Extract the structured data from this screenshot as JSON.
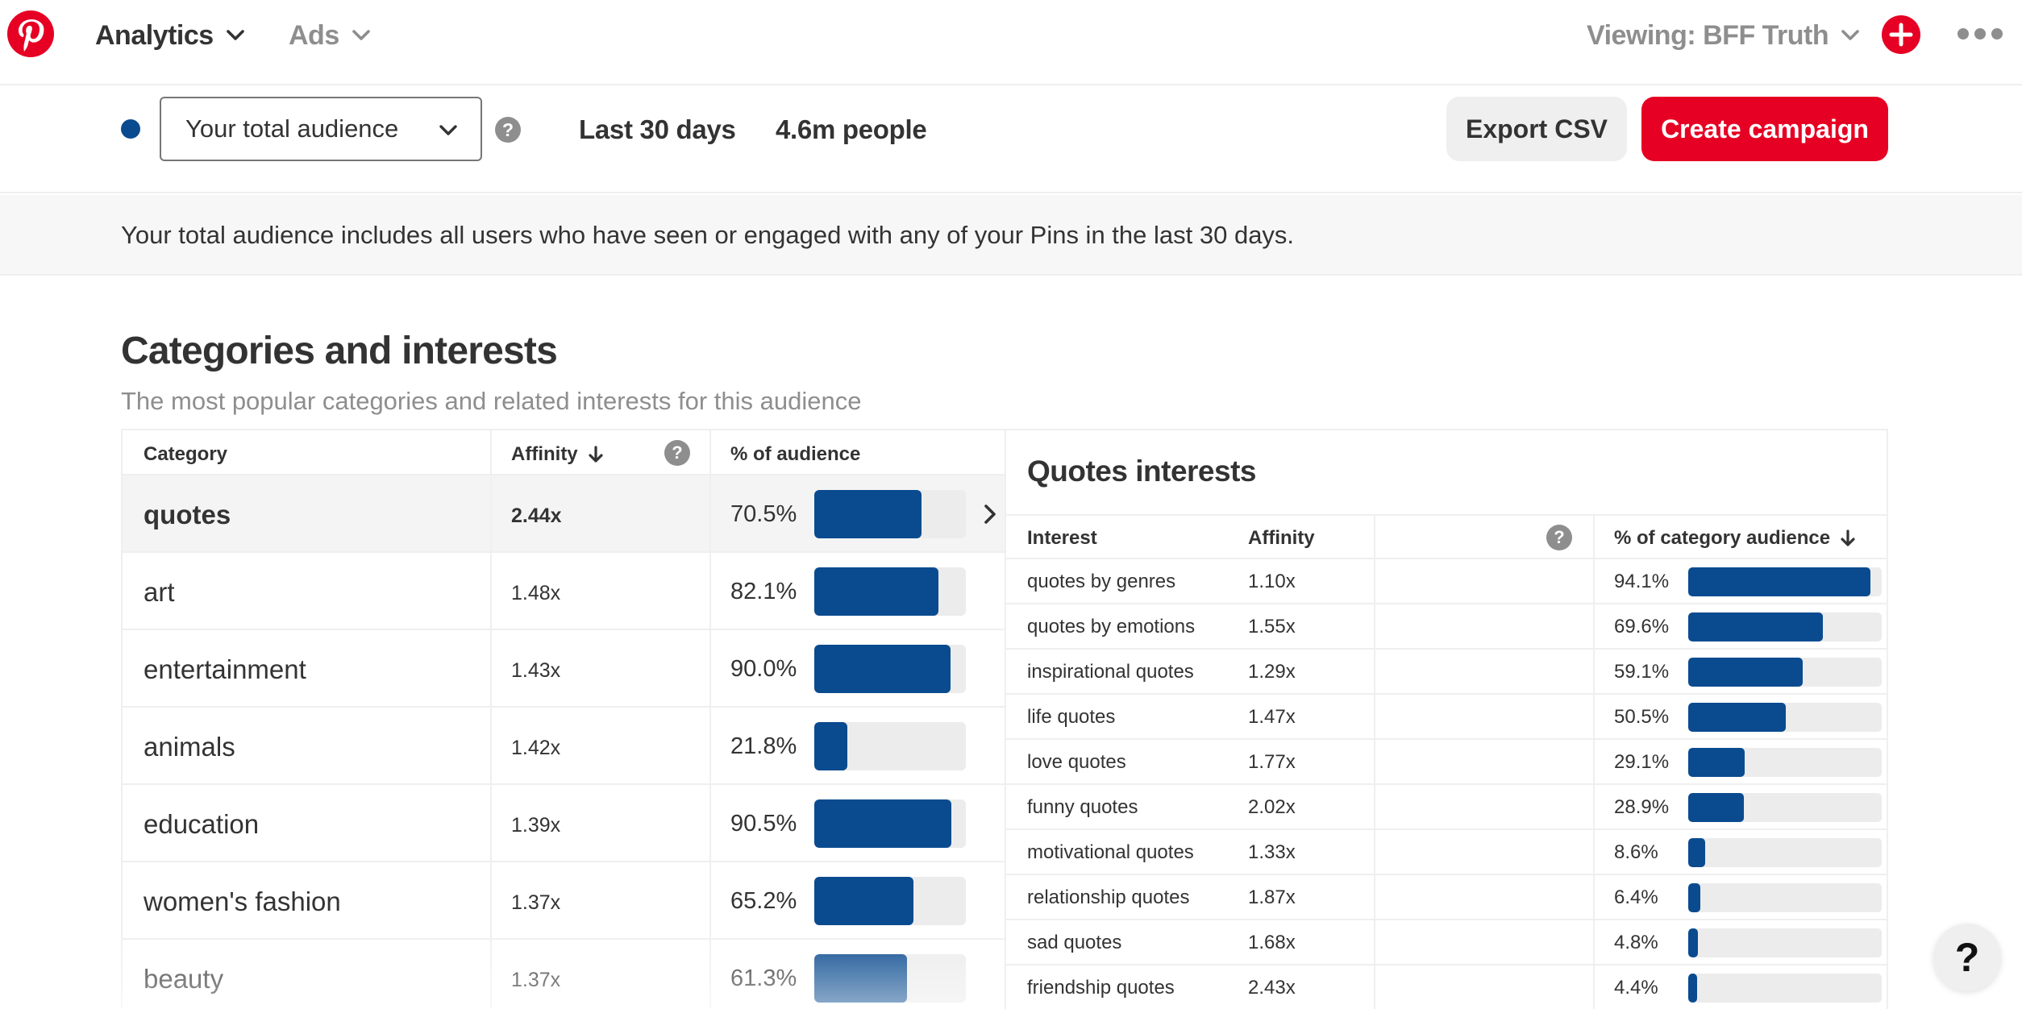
{
  "topnav": {
    "brand_icon": "pinterest-logo",
    "analytics_label": "Analytics",
    "ads_label": "Ads",
    "viewing_label": "Viewing: BFF Truth",
    "icons": {
      "create": "plus-icon",
      "more": "ellipsis-icon",
      "chevron": "chevron-down-icon"
    }
  },
  "toolbar": {
    "audience_select_value": "Your total audience",
    "audience_dot_color": "#0a4b8f",
    "date_range": "Last 30 days",
    "people_count": "4.6m people",
    "export_label": "Export CSV",
    "create_label": "Create campaign",
    "help_icon": "question-icon"
  },
  "banner": {
    "text": "Your total audience includes all users who have seen or engaged with any of your Pins in the last 30 days."
  },
  "section": {
    "title": "Categories and interests",
    "subtitle": "The most popular categories and related interests for this audience"
  },
  "categories": {
    "headers": {
      "category": "Category",
      "affinity": "Affinity",
      "audience": "% of audience"
    },
    "rows": [
      {
        "name": "quotes",
        "affinity": "2.44x",
        "pct": "70.5%",
        "value": 70.5,
        "selected": true
      },
      {
        "name": "art",
        "affinity": "1.48x",
        "pct": "82.1%",
        "value": 82.1,
        "selected": false
      },
      {
        "name": "entertainment",
        "affinity": "1.43x",
        "pct": "90.0%",
        "value": 90.0,
        "selected": false
      },
      {
        "name": "animals",
        "affinity": "1.42x",
        "pct": "21.8%",
        "value": 21.8,
        "selected": false
      },
      {
        "name": "education",
        "affinity": "1.39x",
        "pct": "90.5%",
        "value": 90.5,
        "selected": false
      },
      {
        "name": "women's fashion",
        "affinity": "1.37x",
        "pct": "65.2%",
        "value": 65.2,
        "selected": false
      },
      {
        "name": "beauty",
        "affinity": "1.37x",
        "pct": "61.3%",
        "value": 61.3,
        "selected": false
      }
    ]
  },
  "interests": {
    "title": "Quotes interests",
    "headers": {
      "interest": "Interest",
      "affinity": "Affinity",
      "audience": "% of category audience"
    },
    "rows": [
      {
        "name": "quotes by genres",
        "affinity": "1.10x",
        "pct": "94.1%",
        "value": 94.1
      },
      {
        "name": "quotes by emotions",
        "affinity": "1.55x",
        "pct": "69.6%",
        "value": 69.6
      },
      {
        "name": "inspirational quotes",
        "affinity": "1.29x",
        "pct": "59.1%",
        "value": 59.1
      },
      {
        "name": "life quotes",
        "affinity": "1.47x",
        "pct": "50.5%",
        "value": 50.5
      },
      {
        "name": "love quotes",
        "affinity": "1.77x",
        "pct": "29.1%",
        "value": 29.1
      },
      {
        "name": "funny quotes",
        "affinity": "2.02x",
        "pct": "28.9%",
        "value": 28.9
      },
      {
        "name": "motivational quotes",
        "affinity": "1.33x",
        "pct": "8.6%",
        "value": 8.6
      },
      {
        "name": "relationship quotes",
        "affinity": "1.87x",
        "pct": "6.4%",
        "value": 6.4
      },
      {
        "name": "sad quotes",
        "affinity": "1.68x",
        "pct": "4.8%",
        "value": 4.8
      },
      {
        "name": "friendship quotes",
        "affinity": "2.43x",
        "pct": "4.4%",
        "value": 4.4
      }
    ]
  },
  "floating_help": {
    "label": "?",
    "icon": "help-icon"
  }
}
